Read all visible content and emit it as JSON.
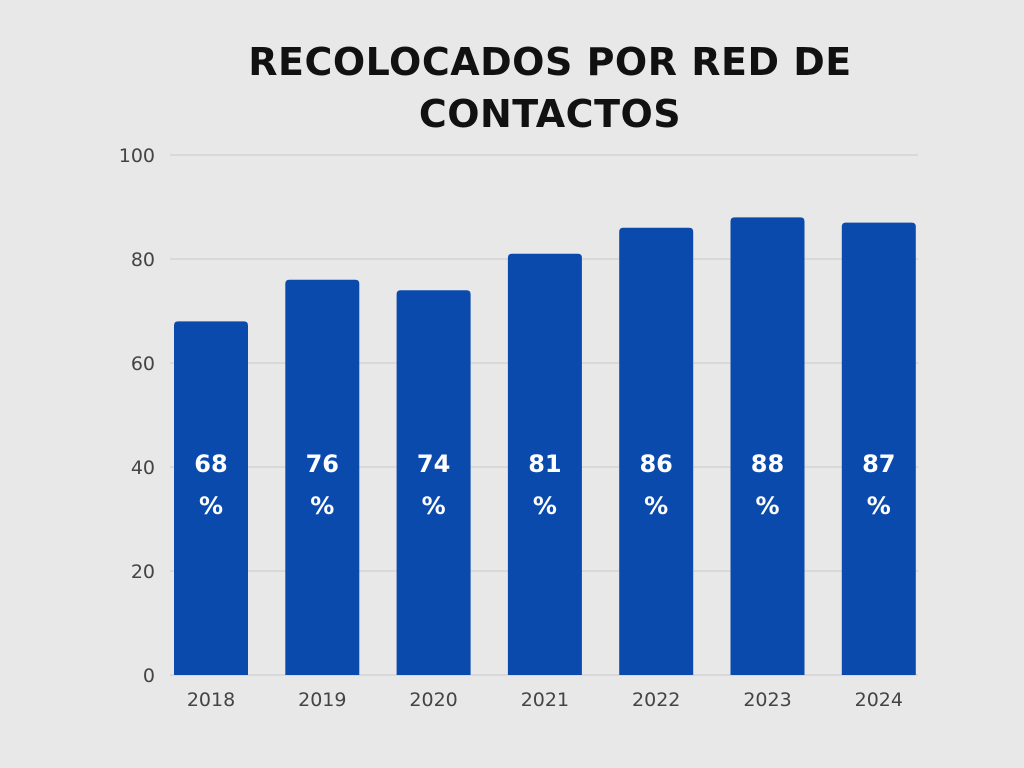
{
  "chart_data": {
    "type": "bar",
    "title": "RECOLOCADOS POR RED DE CONTACTOS",
    "categories": [
      "2018",
      "2019",
      "2020",
      "2021",
      "2022",
      "2023",
      "2024"
    ],
    "values": [
      68,
      76,
      74,
      81,
      86,
      88,
      87
    ],
    "data_labels": [
      "68 %",
      "76 %",
      "74 %",
      "81 %",
      "86 %",
      "88 %",
      "87 %"
    ],
    "xlabel": "",
    "ylabel": "",
    "ylim": [
      0,
      100
    ],
    "yticks": [
      0,
      20,
      40,
      60,
      80,
      100
    ],
    "grid": true,
    "legend": "none",
    "colors": {
      "bar": "#0b4aad",
      "background": "#e8e8e8",
      "grid": "#d9d9d9",
      "label": "#ffffff",
      "tick": "#444444"
    }
  }
}
